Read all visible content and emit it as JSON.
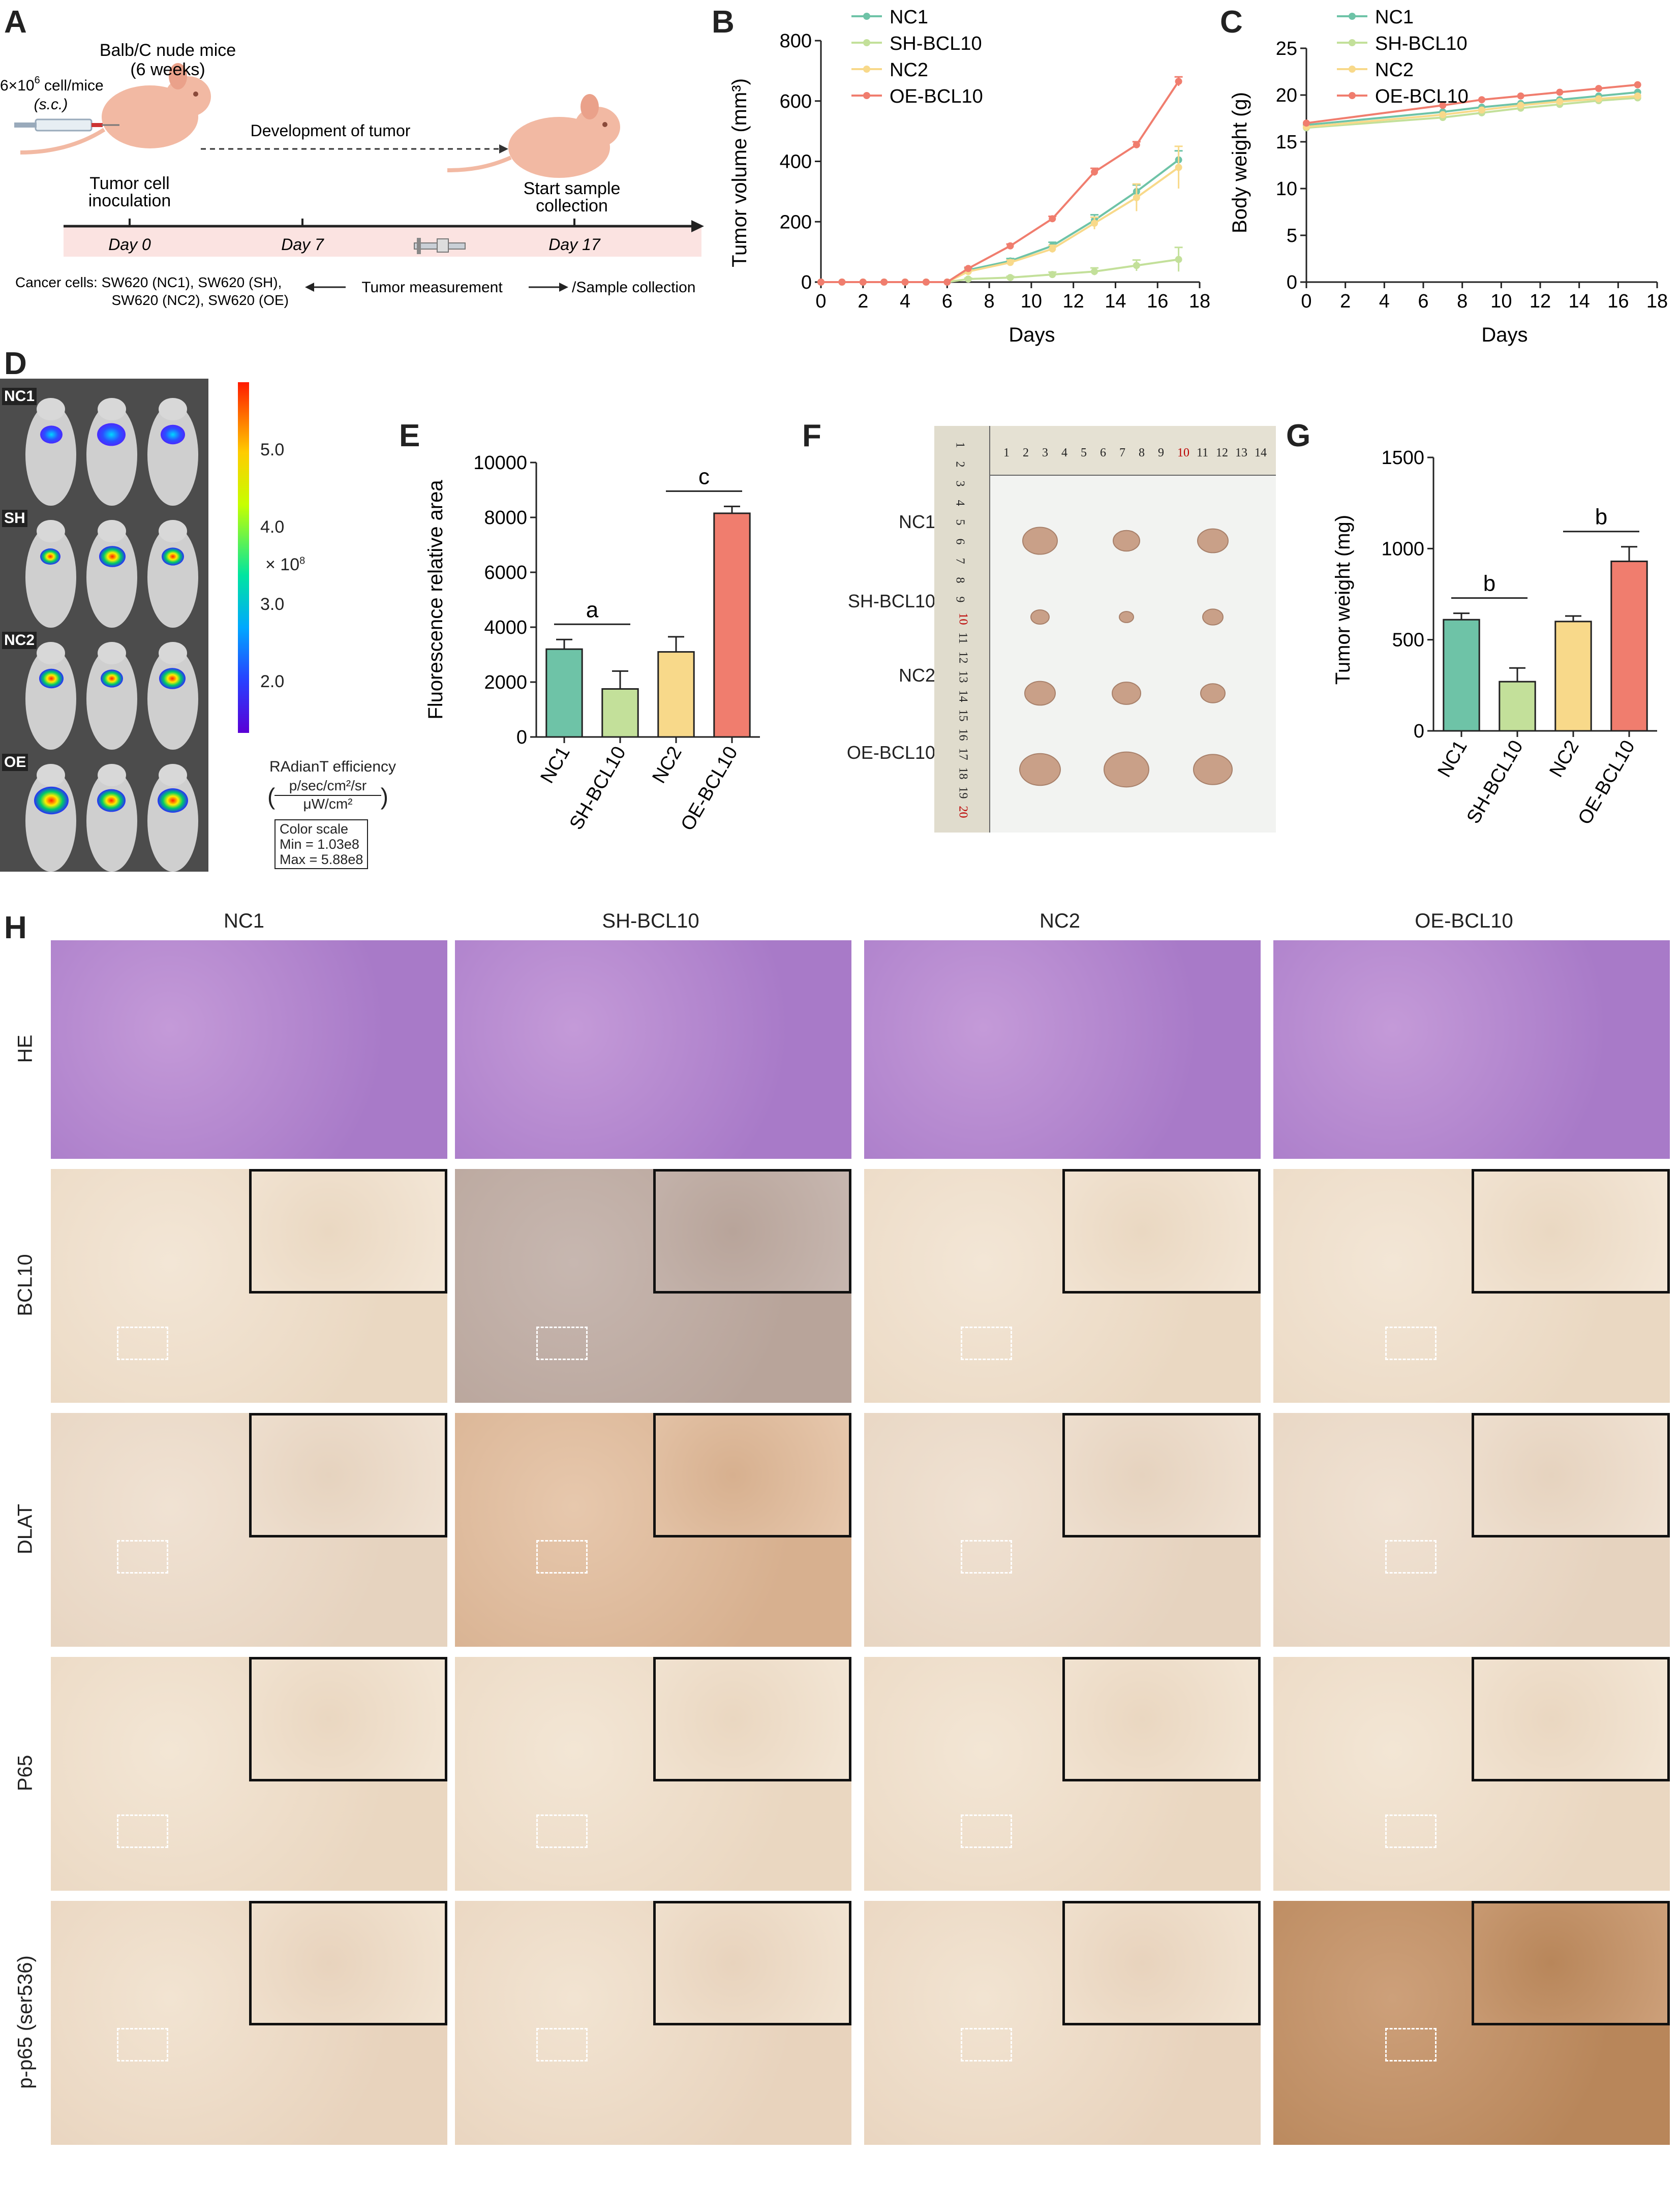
{
  "panel_letters": [
    "A",
    "B",
    "C",
    "D",
    "E",
    "F",
    "G",
    "H"
  ],
  "schematic": {
    "mice_title": "Balb/C nude mice",
    "mice_age": "(6 weeks)",
    "dose": "6×10",
    "dose_exp": "6",
    "dose_unit": " cell/mice",
    "route": "(s.c.)",
    "inoculation": [
      "Tumor cell",
      "inoculation"
    ],
    "development": "Development of tumor",
    "collection": [
      "Start sample",
      "collection"
    ],
    "days": [
      "Day 0",
      "Day 7",
      "Day 17"
    ],
    "cancer_cells": [
      "Cancer cells: SW620 (NC1), SW620 (SH),",
      "SW620 (NC2), SW620 (OE)"
    ],
    "tumor_measurement": "Tumor measurement",
    "sample_collection": "/Sample collection"
  },
  "imaging": {
    "rows": [
      "NC1",
      "SH",
      "NC2",
      "OE"
    ],
    "scale_ticks": [
      "5.0",
      "4.0",
      "3.0",
      "2.0"
    ],
    "scale_multiplier": "× 10",
    "scale_multiplier_exp": "8",
    "efficiency_label": "RAdianT efficiency",
    "units_num": "p/sec/cm²/sr",
    "units_den": "μW/cm²",
    "color_scale": [
      "Color scale",
      "Min = 1.03e8",
      "Max = 5.88e8"
    ]
  },
  "ruler": {
    "top_numbers": [
      "1",
      "2",
      "3",
      "4",
      "5",
      "6",
      "7",
      "8",
      "9",
      "10",
      "11",
      "12",
      "13",
      "14"
    ],
    "side_numbers": [
      "1",
      "2",
      "3",
      "4",
      "5",
      "6",
      "7",
      "8",
      "9",
      "10",
      "11",
      "12",
      "13",
      "14",
      "15",
      "16",
      "17",
      "18",
      "19",
      "20"
    ],
    "groups": [
      "NC1",
      "SH-BCL10",
      "NC2",
      "OE-BCL10"
    ]
  },
  "ihc": {
    "columns": [
      "NC1",
      "SH-BCL10",
      "NC2",
      "OE-BCL10"
    ],
    "rows": [
      "HE",
      "BCL10",
      "DLAT",
      "P65",
      "p-p65 (ser536)"
    ]
  },
  "chart_data": [
    {
      "panel": "B",
      "type": "line",
      "xlabel": "Days",
      "ylabel": "Tumor volume (mm³)",
      "xlim": [
        0,
        18
      ],
      "ylim": [
        0,
        800
      ],
      "xticks": [
        0,
        2,
        4,
        6,
        8,
        10,
        12,
        14,
        16,
        18
      ],
      "yticks": [
        0,
        200,
        400,
        600,
        800
      ],
      "legend": "top-left",
      "x": [
        0,
        1,
        2,
        3,
        4,
        5,
        6,
        7,
        9,
        11,
        13,
        15,
        17
      ],
      "series": [
        {
          "name": "NC1",
          "color": "#6ec3a7",
          "values": [
            0,
            0,
            0,
            0,
            0,
            0,
            0,
            40,
            70,
            120,
            205,
            300,
            405
          ],
          "err": [
            0,
            0,
            0,
            0,
            0,
            0,
            0,
            6,
            8,
            12,
            18,
            22,
            30
          ]
        },
        {
          "name": "SH-BCL10",
          "color": "#c3e09a",
          "values": [
            0,
            0,
            0,
            0,
            0,
            0,
            0,
            10,
            15,
            25,
            35,
            55,
            75
          ],
          "err": [
            0,
            0,
            0,
            0,
            0,
            0,
            0,
            3,
            4,
            8,
            12,
            18,
            40
          ]
        },
        {
          "name": "NC2",
          "color": "#f8d98a",
          "values": [
            0,
            0,
            0,
            0,
            0,
            0,
            0,
            35,
            65,
            110,
            195,
            280,
            380
          ],
          "err": [
            0,
            0,
            0,
            0,
            0,
            0,
            0,
            6,
            8,
            12,
            20,
            45,
            70
          ]
        },
        {
          "name": "OE-BCL10",
          "color": "#f07d6e",
          "values": [
            0,
            0,
            0,
            0,
            0,
            0,
            0,
            45,
            120,
            210,
            365,
            455,
            665
          ],
          "err": [
            0,
            0,
            0,
            0,
            0,
            0,
            0,
            4,
            6,
            8,
            12,
            10,
            15
          ]
        }
      ]
    },
    {
      "panel": "C",
      "type": "line",
      "xlabel": "Days",
      "ylabel": "Body weight (g)",
      "xlim": [
        0,
        18
      ],
      "ylim": [
        0,
        25
      ],
      "xticks": [
        0,
        2,
        4,
        6,
        8,
        10,
        12,
        14,
        16,
        18
      ],
      "yticks": [
        0,
        5,
        10,
        15,
        20,
        25
      ],
      "legend": "top-left",
      "x": [
        0,
        7,
        9,
        11,
        13,
        15,
        17
      ],
      "series": [
        {
          "name": "NC1",
          "color": "#6ec3a7",
          "values": [
            16.8,
            18.2,
            18.7,
            19.1,
            19.5,
            19.9,
            20.3
          ]
        },
        {
          "name": "SH-BCL10",
          "color": "#c3e09a",
          "values": [
            16.5,
            17.6,
            18.1,
            18.6,
            19.0,
            19.4,
            19.7
          ]
        },
        {
          "name": "NC2",
          "color": "#f8d98a",
          "values": [
            16.6,
            17.9,
            18.4,
            18.9,
            19.3,
            19.6,
            19.9
          ]
        },
        {
          "name": "OE-BCL10",
          "color": "#f07d6e",
          "values": [
            17.0,
            18.9,
            19.5,
            19.9,
            20.3,
            20.7,
            21.1
          ]
        }
      ]
    },
    {
      "panel": "E",
      "type": "bar",
      "ylabel": "Fluorescence relative area",
      "categories": [
        "NC1",
        "SH-BCL10",
        "NC2",
        "OE-BCL10"
      ],
      "values": [
        3200,
        1750,
        3100,
        8150
      ],
      "err": [
        350,
        650,
        550,
        250
      ],
      "colors": [
        "#6ec3a7",
        "#c3e09a",
        "#f8d98a",
        "#f07d6e"
      ],
      "ylim": [
        0,
        10000
      ],
      "yticks": [
        0,
        2000,
        4000,
        6000,
        8000,
        10000
      ],
      "annotations": [
        {
          "text": "a",
          "between": [
            0,
            1
          ]
        },
        {
          "text": "c",
          "between": [
            2,
            3
          ]
        }
      ]
    },
    {
      "panel": "G",
      "type": "bar",
      "ylabel": "Tumor weight (mg)",
      "categories": [
        "NC1",
        "SH-BCL10",
        "NC2",
        "OE-BCL10"
      ],
      "values": [
        610,
        270,
        600,
        930
      ],
      "err": [
        35,
        75,
        30,
        80
      ],
      "colors": [
        "#6ec3a7",
        "#c3e09a",
        "#f8d98a",
        "#f07d6e"
      ],
      "ylim": [
        0,
        1500
      ],
      "yticks": [
        0,
        500,
        1000,
        1500
      ],
      "annotations": [
        {
          "text": "b",
          "between": [
            0,
            1
          ]
        },
        {
          "text": "b",
          "between": [
            2,
            3
          ]
        }
      ]
    }
  ]
}
